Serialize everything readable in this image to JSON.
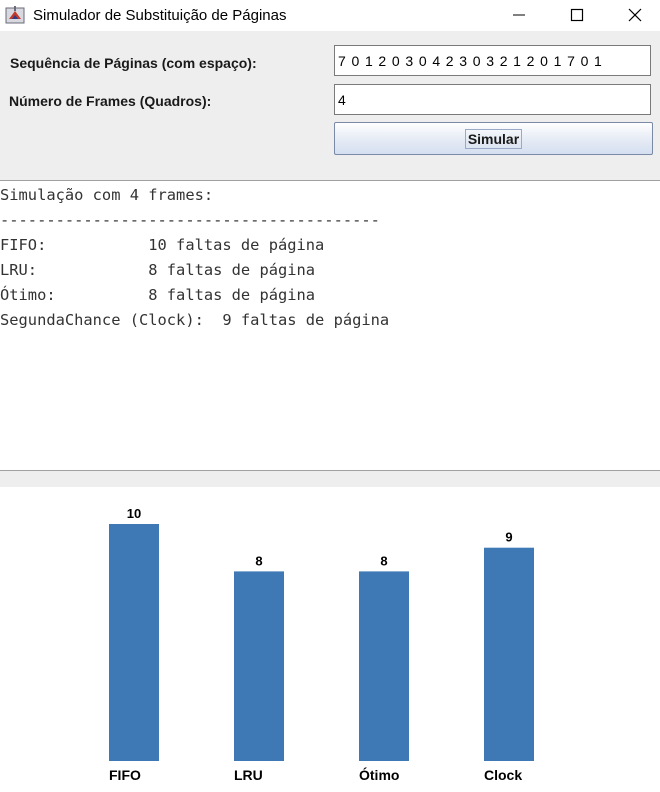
{
  "window": {
    "title": "Simulador de Substituição de Páginas",
    "icon": "java-app-icon"
  },
  "form": {
    "sequence_label": "Sequência de Páginas (com espaço):",
    "sequence_value": "7 0 1 2 0 3 0 4 2 3 0 3 2 1 2 0 1 7 0 1",
    "frames_label": "Número de Frames (Quadros):",
    "frames_value": "4",
    "simulate_label": "Simular"
  },
  "output": {
    "lines": [
      "Simulação com 4 frames:",
      "-----------------------------------------",
      "FIFO:           10 faltas de página",
      "LRU:            8 faltas de página",
      "Ótimo:          8 faltas de página",
      "SegundaChance (Clock):  9 faltas de página"
    ]
  },
  "chart_data": {
    "type": "bar",
    "categories": [
      "FIFO",
      "LRU",
      "Ótimo",
      "Clock"
    ],
    "values": [
      10,
      8,
      8,
      9
    ],
    "data_labels": [
      "10",
      "8",
      "8",
      "9"
    ],
    "title": "",
    "xlabel": "",
    "ylabel": "",
    "ylim": [
      0,
      10
    ],
    "grid": false,
    "bar_color": "#3e79b6"
  }
}
